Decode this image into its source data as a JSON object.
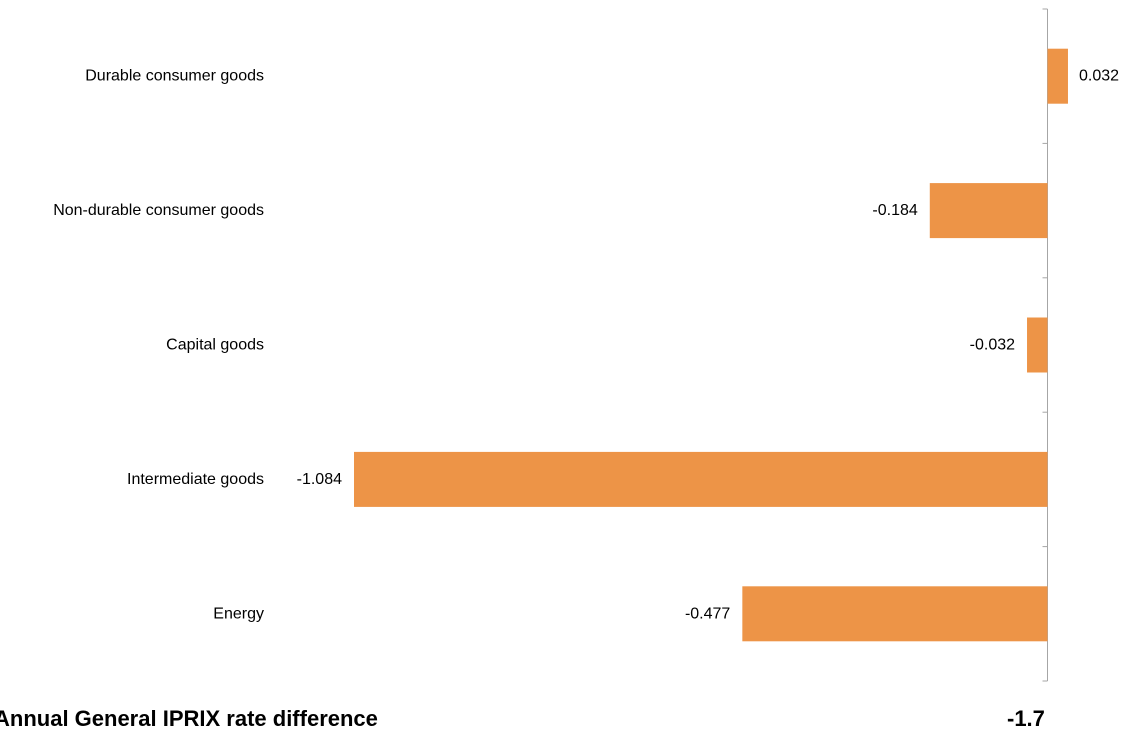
{
  "chart_data": {
    "type": "bar",
    "orientation": "horizontal",
    "categories": [
      "Durable consumer goods",
      "Non-durable consumer goods",
      "Capital goods",
      "Intermediate goods",
      "Energy"
    ],
    "values": [
      0.032,
      -0.184,
      -0.032,
      -1.084,
      -0.477
    ],
    "data_labels": [
      "0.032",
      "-0.184",
      "-0.032",
      "-1.084",
      "-0.477"
    ],
    "bar_color": "#ED9447",
    "axis_color": "#A6A6A6",
    "title": "",
    "xlabel": "",
    "ylabel": "",
    "xlim": [
      -1.084,
      0.032
    ],
    "grid": false,
    "legend": "none"
  },
  "footer": {
    "label": "Annual General IPRIX rate difference",
    "value": "-1.7"
  }
}
